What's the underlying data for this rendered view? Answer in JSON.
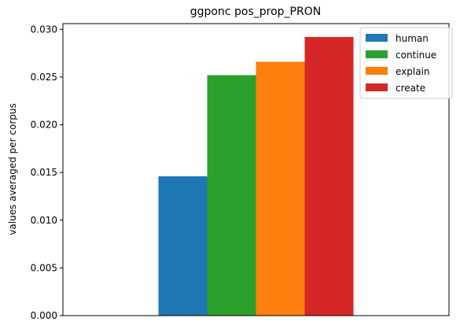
{
  "chart_data": {
    "type": "bar",
    "title": "ggponc pos_prop_PRON",
    "xlabel": "",
    "ylabel": "values averaged per corpus",
    "ylim": [
      0,
      0.0306
    ],
    "yticks": [
      0.0,
      0.005,
      0.01,
      0.015,
      0.02,
      0.025,
      0.03
    ],
    "ytick_labels": [
      "0.000",
      "0.005",
      "0.010",
      "0.015",
      "0.020",
      "0.025",
      "0.030"
    ],
    "grid": false,
    "legend": "top-right",
    "series": [
      {
        "name": "human",
        "value": 0.0146,
        "color": "#1f77b4"
      },
      {
        "name": "continue",
        "value": 0.0252,
        "color": "#2ca02c"
      },
      {
        "name": "explain",
        "value": 0.0266,
        "color": "#ff7f0e"
      },
      {
        "name": "create",
        "value": 0.0292,
        "color": "#d62728"
      }
    ]
  }
}
